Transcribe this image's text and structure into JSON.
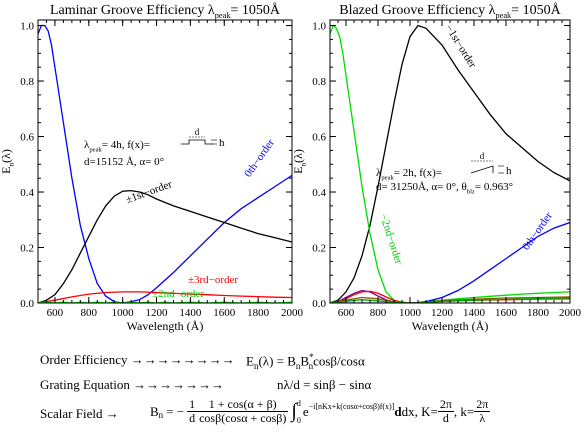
{
  "chart_data": [
    {
      "type": "line",
      "title": "Laminar Groove Efficiency λ",
      "title_sub": "peak",
      "title_tail": "= 1050Å",
      "xlabel": "Wavelength (Å)",
      "ylabel_main": "E",
      "ylabel_sub": "n",
      "ylabel_tail": "(λ)",
      "xlim": [
        500,
        2000
      ],
      "ylim": [
        0,
        1.02
      ],
      "xticks": [
        600,
        800,
        1000,
        1200,
        1400,
        1600,
        1800,
        2000
      ],
      "yticks": [
        0.0,
        0.2,
        0.4,
        0.6,
        0.8,
        1.0
      ],
      "grid": false,
      "annotation": {
        "line1_main": "λ",
        "line1_sub": "peak",
        "line1_tail": "= 4h,   f(x)=",
        "diagram_d": "d",
        "diagram_h": "h",
        "line2": "d=15152 Å,  α= 0°"
      },
      "series": [
        {
          "name": "0th−order",
          "color": "#0000ff",
          "x": [
            500,
            520,
            540,
            560,
            580,
            600,
            650,
            700,
            750,
            800,
            850,
            900,
            950,
            1000,
            1050,
            1100,
            1150,
            1200,
            1300,
            1400,
            1500,
            1600,
            1700,
            1800,
            1900,
            2000
          ],
          "y": [
            0.97,
            1.0,
            1.0,
            0.98,
            0.93,
            0.85,
            0.65,
            0.45,
            0.28,
            0.16,
            0.07,
            0.025,
            0.005,
            0.0,
            0.005,
            0.012,
            0.03,
            0.055,
            0.11,
            0.17,
            0.23,
            0.29,
            0.34,
            0.38,
            0.42,
            0.46
          ]
        },
        {
          "name": "±1st−order",
          "color": "#000000",
          "x": [
            500,
            550,
            600,
            650,
            700,
            750,
            800,
            850,
            900,
            950,
            1000,
            1050,
            1100,
            1150,
            1200,
            1300,
            1400,
            1500,
            1600,
            1700,
            1800,
            1900,
            2000
          ],
          "y": [
            0.0,
            0.01,
            0.03,
            0.07,
            0.12,
            0.18,
            0.24,
            0.3,
            0.35,
            0.385,
            0.403,
            0.405,
            0.4,
            0.39,
            0.375,
            0.35,
            0.33,
            0.31,
            0.29,
            0.27,
            0.25,
            0.235,
            0.22
          ]
        },
        {
          "name": "±3rd−order",
          "color": "#ff0000",
          "x": [
            500,
            600,
            700,
            800,
            900,
            1000,
            1100,
            1200,
            1300,
            1400,
            1500,
            1600,
            1700,
            1800,
            1900,
            2000
          ],
          "y": [
            0.0,
            0.01,
            0.022,
            0.032,
            0.038,
            0.04,
            0.04,
            0.038,
            0.035,
            0.032,
            0.03,
            0.027,
            0.025,
            0.023,
            0.021,
            0.02
          ]
        },
        {
          "name": "±2nd−order",
          "color": "#00ee00",
          "x": [
            500,
            550,
            600,
            650,
            700,
            750,
            800,
            850,
            900,
            950,
            1000,
            1050,
            1100,
            1150,
            1200,
            1250,
            1300,
            1400,
            1500,
            1600,
            1700,
            1800,
            1900,
            2000
          ],
          "y": [
            0.0,
            0.003,
            0.0,
            0.003,
            0.0,
            0.003,
            0.0,
            0.003,
            0.0,
            0.003,
            0.0,
            0.003,
            0.0,
            0.003,
            0.0,
            0.003,
            0.0,
            0.003,
            0.0,
            0.003,
            0.0,
            0.003,
            0.0,
            0.003
          ]
        }
      ]
    },
    {
      "type": "line",
      "title": "Blazed Groove Efficiency λ",
      "title_sub": "peak",
      "title_tail": "= 1050Å",
      "xlabel": "Wavelength (Å)",
      "ylabel_main": "E",
      "ylabel_sub": "n",
      "ylabel_tail": "(λ)",
      "xlim": [
        500,
        2000
      ],
      "ylim": [
        0,
        1.02
      ],
      "xticks": [
        600,
        800,
        1000,
        1200,
        1400,
        1600,
        1800,
        2000
      ],
      "yticks": [
        0.0,
        0.2,
        0.4,
        0.6,
        0.8,
        1.0
      ],
      "grid": false,
      "annotation": {
        "line1_main": "λ",
        "line1_sub": "peak",
        "line1_tail": "= 2h,   f(x)=",
        "diagram_d": "d",
        "diagram_h": "h",
        "line2": "d= 31250Å, α= 0°, θ",
        "line2_sub": "blz",
        "line2_tail": "= 0.963°"
      },
      "series": [
        {
          "name": "−1st−order",
          "color": "#000000",
          "x": [
            500,
            550,
            600,
            650,
            700,
            750,
            800,
            850,
            900,
            950,
            1000,
            1050,
            1100,
            1200,
            1300,
            1400,
            1500,
            1600,
            1700,
            1800,
            1900,
            2000
          ],
          "y": [
            0.0,
            0.01,
            0.04,
            0.09,
            0.17,
            0.28,
            0.42,
            0.57,
            0.72,
            0.86,
            0.96,
            1.0,
            0.99,
            0.93,
            0.84,
            0.76,
            0.68,
            0.61,
            0.56,
            0.51,
            0.47,
            0.44
          ]
        },
        {
          "name": "−2nd−order",
          "color": "#00dd00",
          "x": [
            500,
            520,
            540,
            560,
            580,
            600,
            650,
            700,
            750,
            800,
            850,
            900,
            950,
            1000,
            1050,
            1100,
            1200,
            1300,
            1400,
            1500,
            1600,
            1700,
            1800,
            1900,
            2000
          ],
          "y": [
            0.97,
            1.0,
            0.99,
            0.96,
            0.9,
            0.82,
            0.62,
            0.42,
            0.25,
            0.12,
            0.04,
            0.01,
            0.0,
            0.0,
            0.002,
            0.005,
            0.01,
            0.015,
            0.02,
            0.024,
            0.028,
            0.032,
            0.035,
            0.038,
            0.04
          ]
        },
        {
          "name": "0th−order",
          "color": "#0000ff",
          "x": [
            500,
            600,
            700,
            800,
            900,
            1000,
            1050,
            1100,
            1200,
            1300,
            1400,
            1500,
            1600,
            1700,
            1800,
            1900,
            2000
          ],
          "y": [
            0.0,
            0.0,
            0.0,
            0.0,
            0.0,
            0.0,
            0.0,
            0.005,
            0.02,
            0.045,
            0.08,
            0.12,
            0.16,
            0.2,
            0.24,
            0.27,
            0.29
          ]
        },
        {
          "name": "",
          "color": "#7700aa",
          "x": [
            500,
            550,
            600,
            650,
            700,
            750,
            800,
            850,
            900,
            950,
            1000,
            1050
          ],
          "y": [
            0.0,
            0.005,
            0.02,
            0.035,
            0.045,
            0.04,
            0.025,
            0.012,
            0.004,
            0.001,
            0.0,
            0.0
          ]
        },
        {
          "name": "",
          "color": "#ff0000",
          "x": [
            500,
            550,
            600,
            650,
            700,
            750,
            800,
            850,
            900,
            950,
            1000,
            1050,
            1100,
            1200,
            1400,
            1600,
            1800,
            2000
          ],
          "y": [
            0.0,
            0.004,
            0.015,
            0.03,
            0.04,
            0.042,
            0.035,
            0.022,
            0.01,
            0.003,
            0.0,
            0.0,
            0.002,
            0.006,
            0.01,
            0.012,
            0.014,
            0.015
          ]
        },
        {
          "name": "",
          "color": "#8a5a00",
          "x": [
            500,
            600,
            700,
            800,
            900,
            1000,
            1050,
            1100,
            1200,
            1400,
            1600,
            1800,
            2000
          ],
          "y": [
            0.0,
            0.01,
            0.02,
            0.015,
            0.005,
            0.0,
            0.0,
            0.003,
            0.008,
            0.014,
            0.018,
            0.02,
            0.022
          ]
        },
        {
          "name": "",
          "color": "#00aa00",
          "x": [
            500,
            600,
            700,
            800,
            900,
            1000,
            1050,
            1100,
            1200,
            1400,
            1600,
            1800,
            2000
          ],
          "y": [
            0.0,
            0.006,
            0.012,
            0.008,
            0.002,
            0.0,
            0.0,
            0.002,
            0.006,
            0.01,
            0.013,
            0.016,
            0.018
          ]
        }
      ]
    }
  ],
  "equations": {
    "order_label": "Order Efficiency →→→→→→→→",
    "order_rhs": "E",
    "order_rhs_sub": "n",
    "order_rhs_tail": "(λ) = B",
    "order_rhs_tail2": "B",
    "order_rhs_sup": "*",
    "order_rhs_sub2": "n",
    "order_rhs_end": "cosβ/cosα",
    "grating_label": "Grating Equation →→→→→→→",
    "grating_rhs": "nλ/d = sinβ − sinα",
    "scalar_label": "Scalar Field  →",
    "scalar_b": "B",
    "scalar_b_sub": "n",
    "scalar_eq": "= −",
    "scalar_f1_num": "1",
    "scalar_f1_den": "d",
    "scalar_f2_num": "1 + cos(α + β)",
    "scalar_f2_den": "cosβ(cosα + cosβ)",
    "scalar_int": "∫",
    "scalar_int_top": "d",
    "scalar_int_bot": "0",
    "scalar_exp": "e",
    "scalar_exp_sup": "−i[nKx+k(cosα+cosβ)f(x)]",
    "scalar_dx": "dx,  K=",
    "scalar_k1_num": "2π",
    "scalar_k1_den": "d",
    "scalar_k2_pre": ",  k=",
    "scalar_k2_num": "2π",
    "scalar_k2_den": "λ"
  }
}
